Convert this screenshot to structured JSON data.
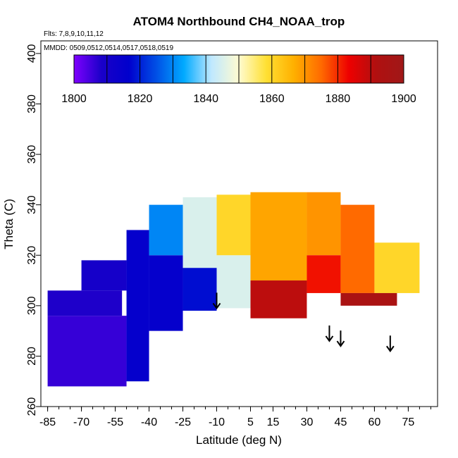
{
  "chart_data": {
    "type": "heatmap",
    "title": "ATOM4 Northbound CH4_NOAA_trop",
    "annotations": {
      "flights": "Flts: 7,8,9,10,11,12",
      "dates": "MMDD: 0509,0512,0514,0517,0518,0519"
    },
    "xlabel": "Latitude (deg N)",
    "ylabel": "Theta (C)",
    "xlim": [
      -88,
      88
    ],
    "ylim": [
      260,
      405
    ],
    "x_ticks": [
      -85,
      -70,
      -55,
      -40,
      -25,
      -10,
      5,
      15,
      30,
      45,
      60,
      75
    ],
    "x_tick_labels": [
      "-85",
      "-70",
      "-55",
      "-40",
      "-25",
      "-10",
      "5",
      "15",
      "30",
      "45",
      "60",
      "75"
    ],
    "y_ticks": [
      260,
      280,
      300,
      320,
      340,
      360,
      380,
      400
    ],
    "y_tick_labels": [
      "260",
      "280",
      "300",
      "320",
      "340",
      "360",
      "380",
      "400"
    ],
    "colorbar": {
      "min": 1800,
      "max": 1900,
      "tick_values": [
        1800,
        1820,
        1840,
        1860,
        1880,
        1900
      ],
      "tick_labels": [
        "1800",
        "1820",
        "1840",
        "1860",
        "1880",
        "1900"
      ],
      "stops": [
        "#7f00ff",
        "#1a00c8",
        "#0000cd",
        "#0050e6",
        "#00aaff",
        "#bfe8ff",
        "#fffbd0",
        "#ffe033",
        "#ffb000",
        "#ff6a00",
        "#ee0000",
        "#b01010",
        "#a01818"
      ]
    },
    "tropopause_arrows": [
      {
        "lat": -10,
        "theta": 299
      },
      {
        "lat": 40,
        "theta": 286
      },
      {
        "lat": 45,
        "theta": 284
      },
      {
        "lat": 67,
        "theta": 282
      }
    ],
    "regions": [
      {
        "lat_min": -85,
        "lat_max": -50,
        "theta_min": 268,
        "theta_max": 296,
        "value": 1806
      },
      {
        "lat_min": -85,
        "lat_max": -52,
        "theta_min": 296,
        "theta_max": 306,
        "value": 1808
      },
      {
        "lat_min": -70,
        "lat_max": -50,
        "theta_min": 306,
        "theta_max": 318,
        "value": 1810
      },
      {
        "lat_min": -50,
        "lat_max": -40,
        "theta_min": 270,
        "theta_max": 330,
        "value": 1815
      },
      {
        "lat_min": -40,
        "lat_max": -25,
        "theta_min": 290,
        "theta_max": 320,
        "value": 1815
      },
      {
        "lat_min": -40,
        "lat_max": -25,
        "theta_min": 320,
        "theta_max": 340,
        "value": 1830
      },
      {
        "lat_min": -25,
        "lat_max": -10,
        "theta_min": 298,
        "theta_max": 315,
        "value": 1818
      },
      {
        "lat_min": -25,
        "lat_max": -10,
        "theta_min": 315,
        "theta_max": 343,
        "value": 1845
      },
      {
        "lat_min": -10,
        "lat_max": 5,
        "theta_min": 299,
        "theta_max": 320,
        "value": 1845
      },
      {
        "lat_min": -10,
        "lat_max": 5,
        "theta_min": 320,
        "theta_max": 344,
        "value": 1860
      },
      {
        "lat_min": 5,
        "lat_max": 30,
        "theta_min": 310,
        "theta_max": 345,
        "value": 1868
      },
      {
        "lat_min": 5,
        "lat_max": 30,
        "theta_min": 295,
        "theta_max": 310,
        "value": 1890
      },
      {
        "lat_min": 30,
        "lat_max": 45,
        "theta_min": 320,
        "theta_max": 345,
        "value": 1870
      },
      {
        "lat_min": 30,
        "lat_max": 45,
        "theta_min": 305,
        "theta_max": 320,
        "value": 1882
      },
      {
        "lat_min": 45,
        "lat_max": 60,
        "theta_min": 305,
        "theta_max": 340,
        "value": 1875
      },
      {
        "lat_min": 60,
        "lat_max": 80,
        "theta_min": 305,
        "theta_max": 325,
        "value": 1860
      },
      {
        "lat_min": 45,
        "lat_max": 70,
        "theta_min": 300,
        "theta_max": 305,
        "value": 1895
      }
    ]
  }
}
